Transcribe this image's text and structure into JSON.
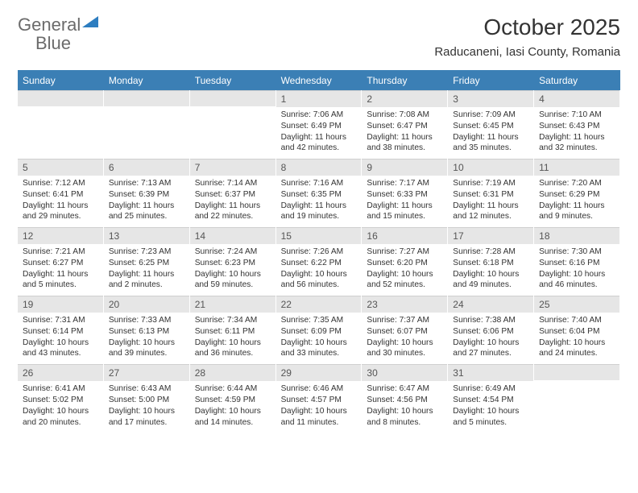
{
  "logo": {
    "text1": "General",
    "text2": "Blue"
  },
  "title": "October 2025",
  "location": "Raducaneni, Iasi County, Romania",
  "colors": {
    "header_bg": "#3b7fb5",
    "header_text": "#ffffff",
    "daynum_bg": "#e6e6e6",
    "text": "#333333",
    "logo_gray": "#6b6b6b",
    "logo_blue": "#2d7dc0",
    "page_bg": "#ffffff"
  },
  "day_labels": [
    "Sunday",
    "Monday",
    "Tuesday",
    "Wednesday",
    "Thursday",
    "Friday",
    "Saturday"
  ],
  "weeks": [
    [
      {
        "n": "",
        "sunrise": "",
        "sunset": "",
        "daylight": ""
      },
      {
        "n": "",
        "sunrise": "",
        "sunset": "",
        "daylight": ""
      },
      {
        "n": "",
        "sunrise": "",
        "sunset": "",
        "daylight": ""
      },
      {
        "n": "1",
        "sunrise": "Sunrise: 7:06 AM",
        "sunset": "Sunset: 6:49 PM",
        "daylight": "Daylight: 11 hours and 42 minutes."
      },
      {
        "n": "2",
        "sunrise": "Sunrise: 7:08 AM",
        "sunset": "Sunset: 6:47 PM",
        "daylight": "Daylight: 11 hours and 38 minutes."
      },
      {
        "n": "3",
        "sunrise": "Sunrise: 7:09 AM",
        "sunset": "Sunset: 6:45 PM",
        "daylight": "Daylight: 11 hours and 35 minutes."
      },
      {
        "n": "4",
        "sunrise": "Sunrise: 7:10 AM",
        "sunset": "Sunset: 6:43 PM",
        "daylight": "Daylight: 11 hours and 32 minutes."
      }
    ],
    [
      {
        "n": "5",
        "sunrise": "Sunrise: 7:12 AM",
        "sunset": "Sunset: 6:41 PM",
        "daylight": "Daylight: 11 hours and 29 minutes."
      },
      {
        "n": "6",
        "sunrise": "Sunrise: 7:13 AM",
        "sunset": "Sunset: 6:39 PM",
        "daylight": "Daylight: 11 hours and 25 minutes."
      },
      {
        "n": "7",
        "sunrise": "Sunrise: 7:14 AM",
        "sunset": "Sunset: 6:37 PM",
        "daylight": "Daylight: 11 hours and 22 minutes."
      },
      {
        "n": "8",
        "sunrise": "Sunrise: 7:16 AM",
        "sunset": "Sunset: 6:35 PM",
        "daylight": "Daylight: 11 hours and 19 minutes."
      },
      {
        "n": "9",
        "sunrise": "Sunrise: 7:17 AM",
        "sunset": "Sunset: 6:33 PM",
        "daylight": "Daylight: 11 hours and 15 minutes."
      },
      {
        "n": "10",
        "sunrise": "Sunrise: 7:19 AM",
        "sunset": "Sunset: 6:31 PM",
        "daylight": "Daylight: 11 hours and 12 minutes."
      },
      {
        "n": "11",
        "sunrise": "Sunrise: 7:20 AM",
        "sunset": "Sunset: 6:29 PM",
        "daylight": "Daylight: 11 hours and 9 minutes."
      }
    ],
    [
      {
        "n": "12",
        "sunrise": "Sunrise: 7:21 AM",
        "sunset": "Sunset: 6:27 PM",
        "daylight": "Daylight: 11 hours and 5 minutes."
      },
      {
        "n": "13",
        "sunrise": "Sunrise: 7:23 AM",
        "sunset": "Sunset: 6:25 PM",
        "daylight": "Daylight: 11 hours and 2 minutes."
      },
      {
        "n": "14",
        "sunrise": "Sunrise: 7:24 AM",
        "sunset": "Sunset: 6:23 PM",
        "daylight": "Daylight: 10 hours and 59 minutes."
      },
      {
        "n": "15",
        "sunrise": "Sunrise: 7:26 AM",
        "sunset": "Sunset: 6:22 PM",
        "daylight": "Daylight: 10 hours and 56 minutes."
      },
      {
        "n": "16",
        "sunrise": "Sunrise: 7:27 AM",
        "sunset": "Sunset: 6:20 PM",
        "daylight": "Daylight: 10 hours and 52 minutes."
      },
      {
        "n": "17",
        "sunrise": "Sunrise: 7:28 AM",
        "sunset": "Sunset: 6:18 PM",
        "daylight": "Daylight: 10 hours and 49 minutes."
      },
      {
        "n": "18",
        "sunrise": "Sunrise: 7:30 AM",
        "sunset": "Sunset: 6:16 PM",
        "daylight": "Daylight: 10 hours and 46 minutes."
      }
    ],
    [
      {
        "n": "19",
        "sunrise": "Sunrise: 7:31 AM",
        "sunset": "Sunset: 6:14 PM",
        "daylight": "Daylight: 10 hours and 43 minutes."
      },
      {
        "n": "20",
        "sunrise": "Sunrise: 7:33 AM",
        "sunset": "Sunset: 6:13 PM",
        "daylight": "Daylight: 10 hours and 39 minutes."
      },
      {
        "n": "21",
        "sunrise": "Sunrise: 7:34 AM",
        "sunset": "Sunset: 6:11 PM",
        "daylight": "Daylight: 10 hours and 36 minutes."
      },
      {
        "n": "22",
        "sunrise": "Sunrise: 7:35 AM",
        "sunset": "Sunset: 6:09 PM",
        "daylight": "Daylight: 10 hours and 33 minutes."
      },
      {
        "n": "23",
        "sunrise": "Sunrise: 7:37 AM",
        "sunset": "Sunset: 6:07 PM",
        "daylight": "Daylight: 10 hours and 30 minutes."
      },
      {
        "n": "24",
        "sunrise": "Sunrise: 7:38 AM",
        "sunset": "Sunset: 6:06 PM",
        "daylight": "Daylight: 10 hours and 27 minutes."
      },
      {
        "n": "25",
        "sunrise": "Sunrise: 7:40 AM",
        "sunset": "Sunset: 6:04 PM",
        "daylight": "Daylight: 10 hours and 24 minutes."
      }
    ],
    [
      {
        "n": "26",
        "sunrise": "Sunrise: 6:41 AM",
        "sunset": "Sunset: 5:02 PM",
        "daylight": "Daylight: 10 hours and 20 minutes."
      },
      {
        "n": "27",
        "sunrise": "Sunrise: 6:43 AM",
        "sunset": "Sunset: 5:00 PM",
        "daylight": "Daylight: 10 hours and 17 minutes."
      },
      {
        "n": "28",
        "sunrise": "Sunrise: 6:44 AM",
        "sunset": "Sunset: 4:59 PM",
        "daylight": "Daylight: 10 hours and 14 minutes."
      },
      {
        "n": "29",
        "sunrise": "Sunrise: 6:46 AM",
        "sunset": "Sunset: 4:57 PM",
        "daylight": "Daylight: 10 hours and 11 minutes."
      },
      {
        "n": "30",
        "sunrise": "Sunrise: 6:47 AM",
        "sunset": "Sunset: 4:56 PM",
        "daylight": "Daylight: 10 hours and 8 minutes."
      },
      {
        "n": "31",
        "sunrise": "Sunrise: 6:49 AM",
        "sunset": "Sunset: 4:54 PM",
        "daylight": "Daylight: 10 hours and 5 minutes."
      },
      {
        "n": "",
        "sunrise": "",
        "sunset": "",
        "daylight": ""
      }
    ]
  ]
}
